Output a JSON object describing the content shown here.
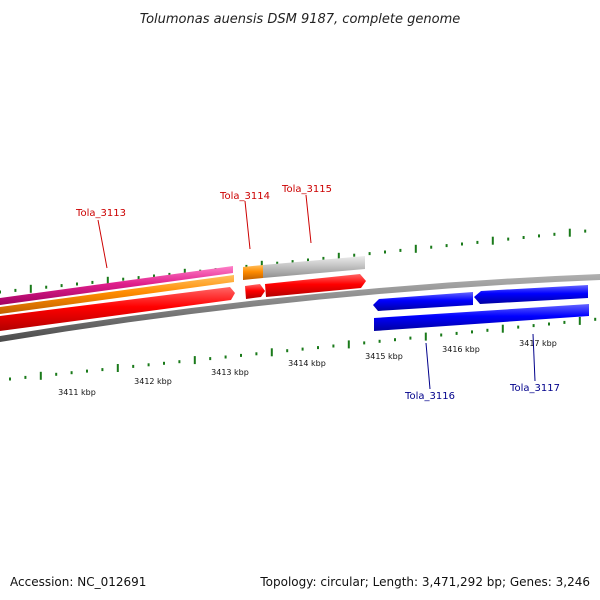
{
  "title": "Tolumonas auensis DSM 9187, complete genome",
  "footer": {
    "accession": "Accession: NC_012691",
    "topology": "Topology: circular; Length: 3,471,292 bp; Genes: 3,246"
  },
  "colors": {
    "cds_forward": "#ff0000",
    "cds_reverse": "#0000ff",
    "gene_orange": "#ff8c00",
    "feature_magenta": "#e0208c",
    "feature_gray": "#c0c0c0",
    "backbone": "#7f7f7f",
    "tick": "#1a7a1a",
    "label_forward": "#cc0000",
    "label_reverse": "#00008b"
  },
  "axis": {
    "tick_labels": [
      "3411 kbp",
      "3412 kbp",
      "3413 kbp",
      "3414 kbp",
      "3415 kbp",
      "3416 kbp",
      "3417 kbp"
    ]
  },
  "genes": [
    {
      "label": "Tola_3113",
      "strand": "forward"
    },
    {
      "label": "Tola_3114",
      "strand": "forward"
    },
    {
      "label": "Tola_3115",
      "strand": "forward"
    },
    {
      "label": "Tola_3116",
      "strand": "reverse"
    },
    {
      "label": "Tola_3117",
      "strand": "reverse"
    }
  ]
}
